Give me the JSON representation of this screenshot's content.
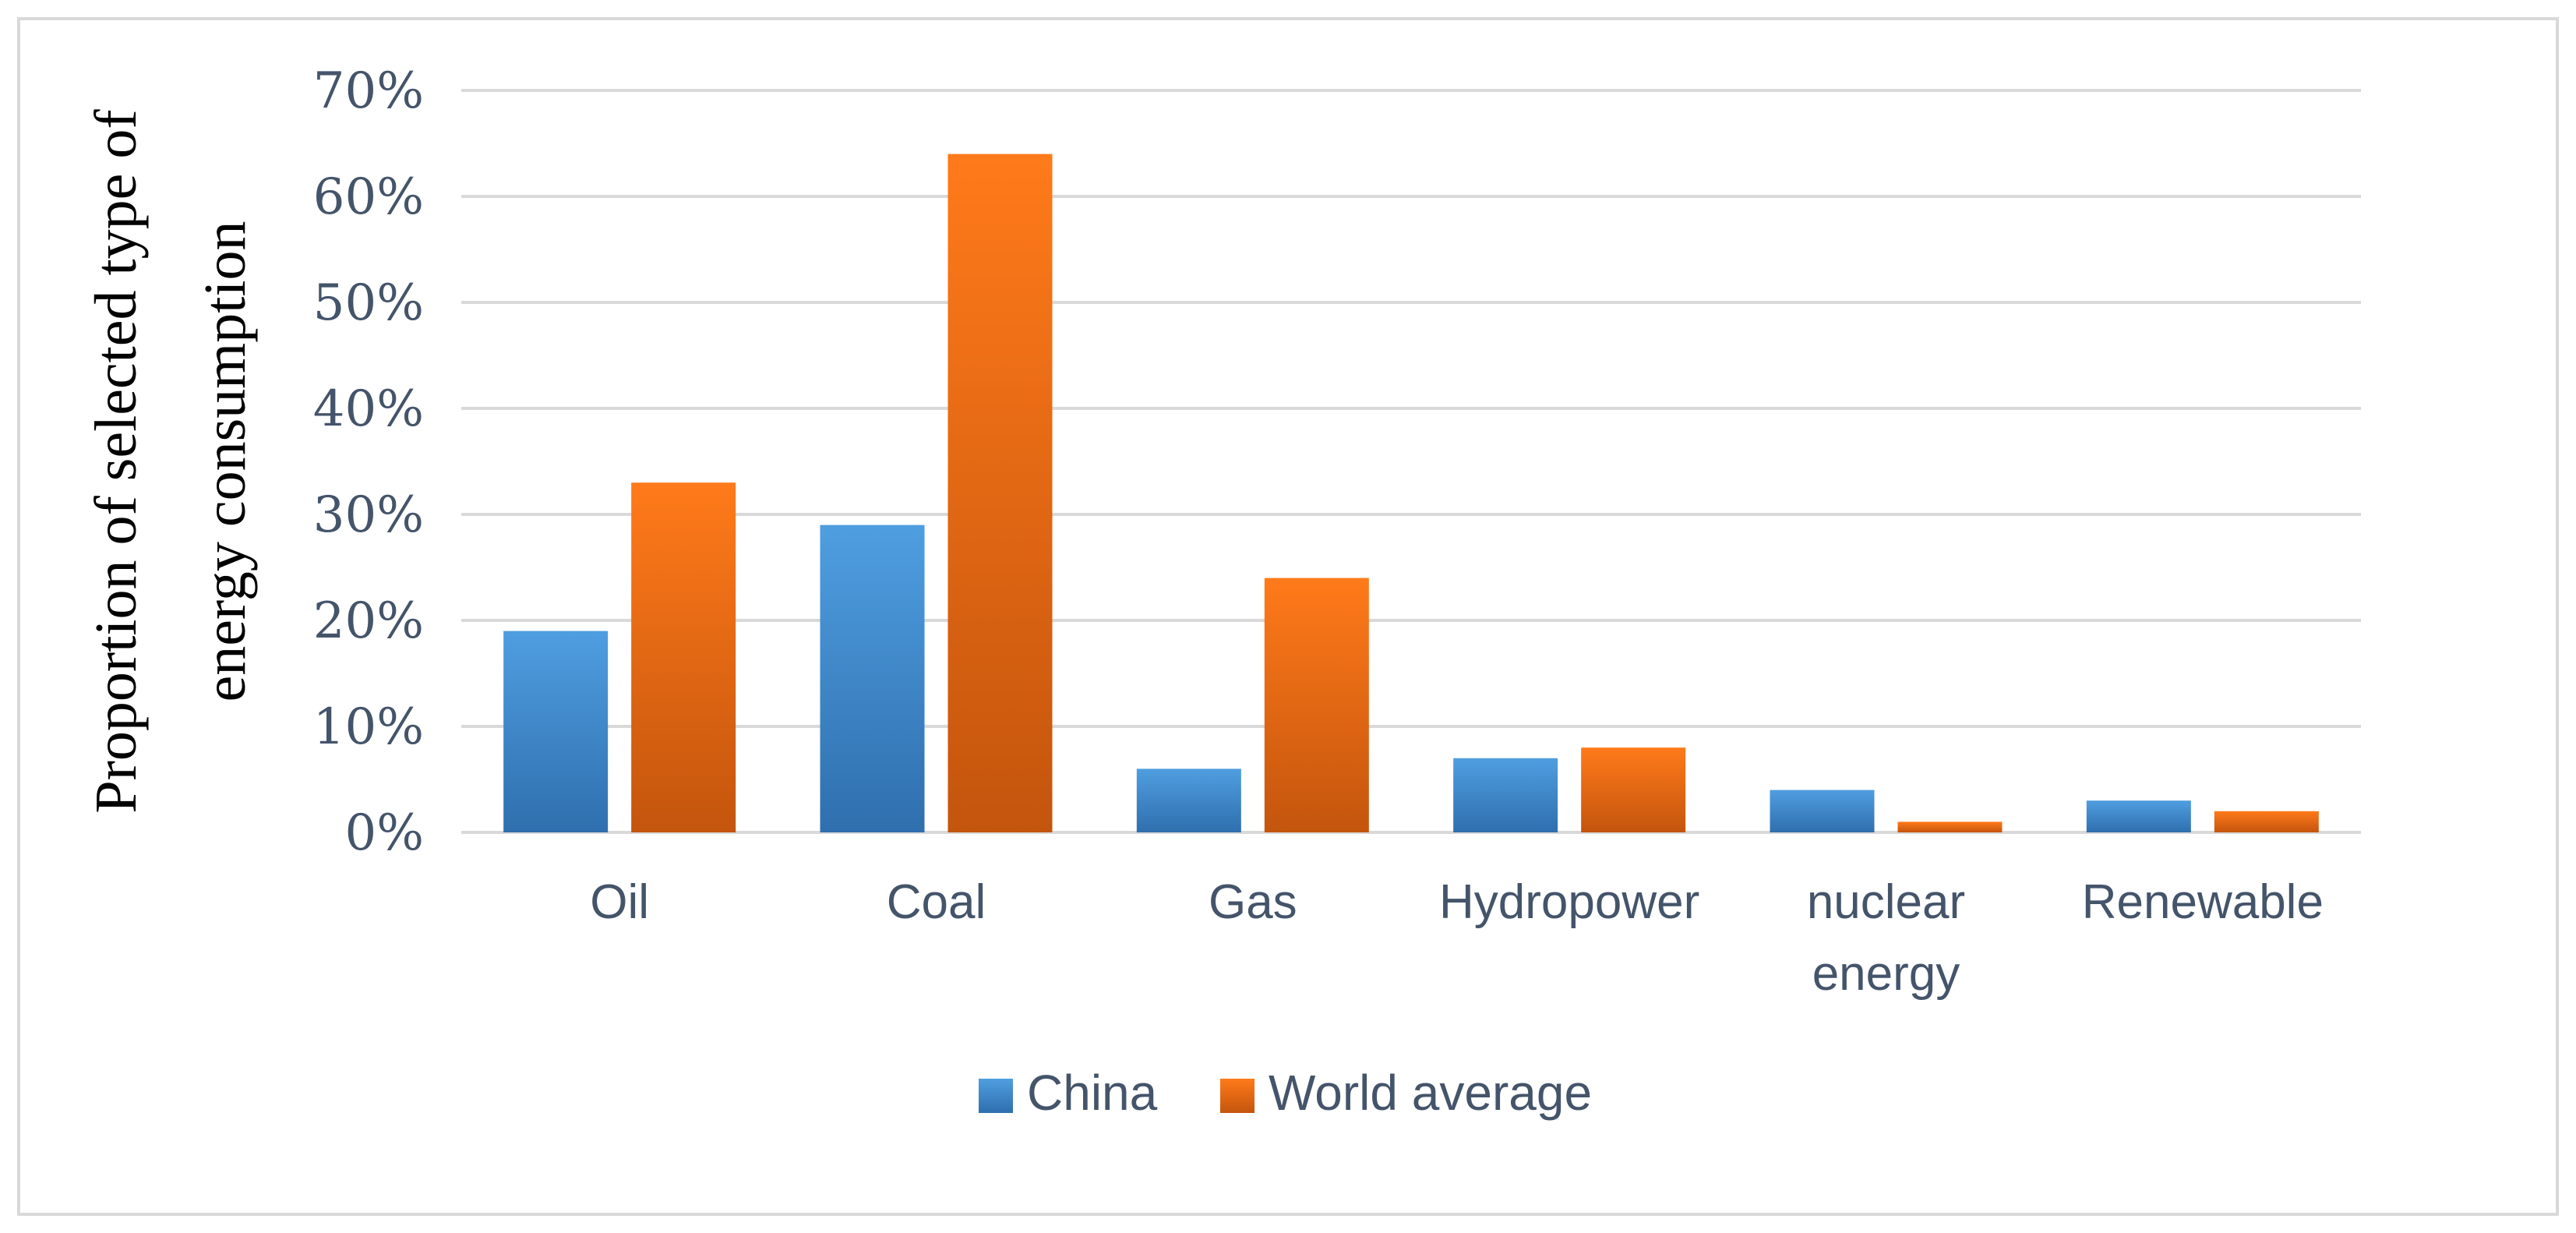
{
  "chart_data": {
    "type": "bar",
    "title": "",
    "ylabel_lines": [
      "Proportion of selected type of",
      "energy consumption"
    ],
    "xlabel": "",
    "categories": [
      [
        "Oil"
      ],
      [
        "Coal"
      ],
      [
        "Gas"
      ],
      [
        "Hydropower"
      ],
      [
        "nuclear",
        "energy"
      ],
      [
        "Renewable"
      ]
    ],
    "series": [
      {
        "name": "China",
        "values": [
          19,
          29,
          6,
          7,
          4,
          3
        ],
        "color_top": "#4f9ee0",
        "color_bottom": "#2f6fae"
      },
      {
        "name": "World average",
        "values": [
          33,
          64,
          24,
          8,
          1,
          2
        ],
        "color_top": "#ff7a1a",
        "color_bottom": "#c4550d"
      }
    ],
    "ylim": [
      0,
      70
    ],
    "yticks": [
      0,
      10,
      20,
      30,
      40,
      50,
      60,
      70
    ],
    "ytick_suffix": "%",
    "grid": true,
    "legend_position": "bottom"
  }
}
